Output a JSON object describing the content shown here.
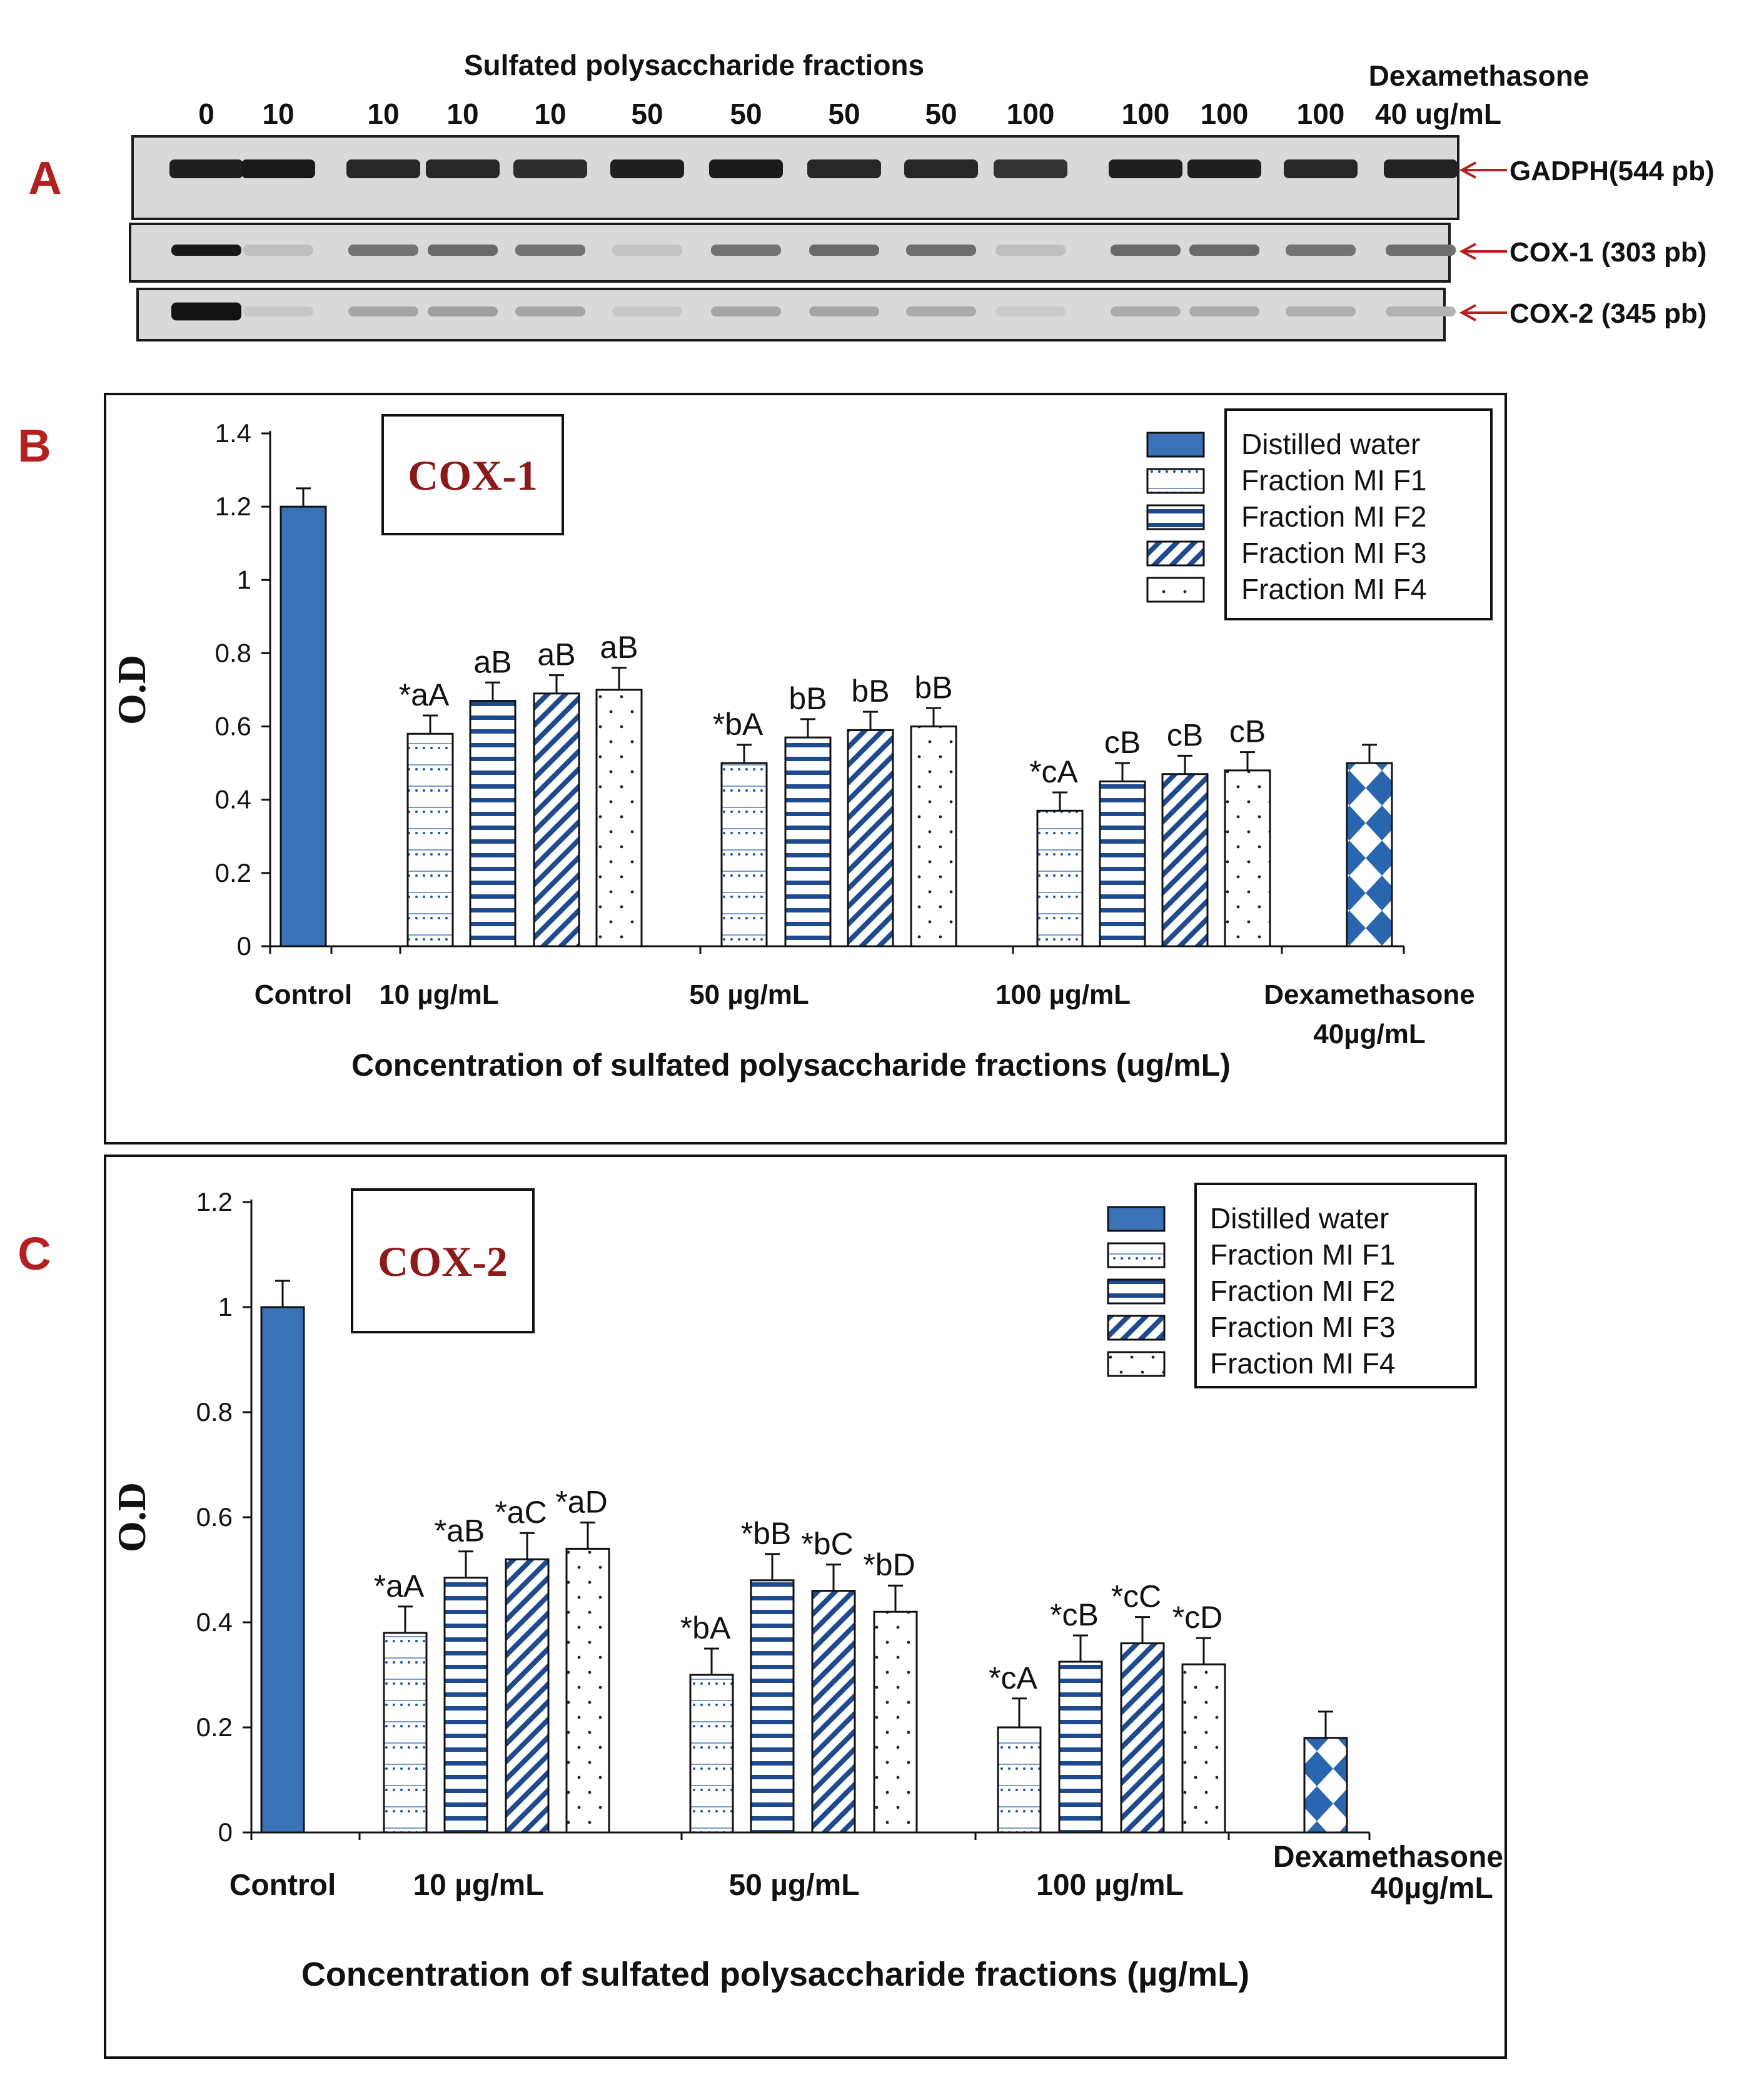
{
  "panel_labels": {
    "a": "A",
    "b": "B",
    "c": "C"
  },
  "gel": {
    "header": "Sulfated polysaccharide fractions",
    "dex_header": "Dexamethasone",
    "lanes": [
      "0",
      "10",
      "10",
      "10",
      "10",
      "50",
      "50",
      "50",
      "50",
      "100",
      "100",
      "100",
      "100",
      "40 ug/mL"
    ],
    "rows": [
      {
        "label": "GADPH(544 pb)",
        "intensities": [
          0.92,
          0.95,
          0.88,
          0.88,
          0.85,
          0.92,
          0.95,
          0.88,
          0.88,
          0.82,
          0.92,
          0.92,
          0.88,
          0.9
        ]
      },
      {
        "label": "COX-1 (303 pb)",
        "intensities": [
          0.95,
          0.12,
          0.5,
          0.55,
          0.5,
          0.1,
          0.5,
          0.55,
          0.52,
          0.12,
          0.55,
          0.55,
          0.5,
          0.52
        ]
      },
      {
        "label": "COX-2 (345 pb)",
        "intensities": [
          0.98,
          0.08,
          0.25,
          0.28,
          0.25,
          0.08,
          0.25,
          0.25,
          0.22,
          0.06,
          0.22,
          0.22,
          0.2,
          0.18
        ]
      }
    ]
  },
  "legend": [
    "Distilled water",
    "Fraction MI F1",
    "Fraction MI F2",
    "Fraction MI F3",
    "Fraction MI F4"
  ],
  "colors": {
    "control": "#3a72b8",
    "stroke": "#111111",
    "title": "#8b1a1a",
    "arrow": "#b32020",
    "pattern_blue": "#2a5aa0",
    "dex": "#2a66b0"
  },
  "chart_data": [
    {
      "type": "bar",
      "title": "COX-1",
      "ylabel": "O.D",
      "xlabel": "Concentration of sulfated polysaccharide fractions (ug/mL)",
      "ylim": [
        0,
        1.4
      ],
      "yticks": [
        "0",
        "0.2",
        "0.4",
        "0.6",
        "0.8",
        "1",
        "1.2",
        "1.4"
      ],
      "group_labels": [
        "Control",
        "10  µg/mL",
        "50 µg/mL",
        "100 µg/mL",
        "Dexamethasone",
        "40µg/mL"
      ],
      "bars": [
        {
          "group": "Control",
          "series": "Distilled water",
          "value": 1.2,
          "error": 0.05,
          "label": ""
        },
        {
          "group": "10",
          "series": "Fraction MI F1",
          "value": 0.58,
          "error": 0.05,
          "label": "*aA"
        },
        {
          "group": "10",
          "series": "Fraction MI F2",
          "value": 0.67,
          "error": 0.05,
          "label": "aB"
        },
        {
          "group": "10",
          "series": "Fraction MI F3",
          "value": 0.69,
          "error": 0.05,
          "label": "aB"
        },
        {
          "group": "10",
          "series": "Fraction MI F4",
          "value": 0.7,
          "error": 0.06,
          "label": "aB"
        },
        {
          "group": "50",
          "series": "Fraction MI F1",
          "value": 0.5,
          "error": 0.05,
          "label": "*bA"
        },
        {
          "group": "50",
          "series": "Fraction MI F2",
          "value": 0.57,
          "error": 0.05,
          "label": "bB"
        },
        {
          "group": "50",
          "series": "Fraction MI F3",
          "value": 0.59,
          "error": 0.05,
          "label": "bB"
        },
        {
          "group": "50",
          "series": "Fraction MI F4",
          "value": 0.6,
          "error": 0.05,
          "label": "bB"
        },
        {
          "group": "100",
          "series": "Fraction MI F1",
          "value": 0.37,
          "error": 0.05,
          "label": "*cA"
        },
        {
          "group": "100",
          "series": "Fraction MI F2",
          "value": 0.45,
          "error": 0.05,
          "label": "cB"
        },
        {
          "group": "100",
          "series": "Fraction MI F3",
          "value": 0.47,
          "error": 0.05,
          "label": "cB"
        },
        {
          "group": "100",
          "series": "Fraction MI F4",
          "value": 0.48,
          "error": 0.05,
          "label": "cB"
        },
        {
          "group": "Dexamethasone",
          "series": "Dexamethasone",
          "value": 0.5,
          "error": 0.05,
          "label": ""
        }
      ]
    },
    {
      "type": "bar",
      "title": "COX-2",
      "ylabel": "O.D",
      "xlabel": "Concentration of sulfated polysaccharide fractions (µg/mL)",
      "ylim": [
        0,
        1.2
      ],
      "yticks": [
        "0",
        "0.2",
        "0.4",
        "0.6",
        "0.8",
        "1",
        "1.2"
      ],
      "group_labels": [
        "Control",
        "10  µg/mL",
        "50 µg/mL",
        "100 µg/mL",
        "Dexamethasone",
        "40µg/mL"
      ],
      "bars": [
        {
          "group": "Control",
          "series": "Distilled water",
          "value": 1.0,
          "error": 0.05,
          "label": ""
        },
        {
          "group": "10",
          "series": "Fraction MI F1",
          "value": 0.38,
          "error": 0.05,
          "label": "*aA"
        },
        {
          "group": "10",
          "series": "Fraction MI F2",
          "value": 0.485,
          "error": 0.05,
          "label": "*aB"
        },
        {
          "group": "10",
          "series": "Fraction MI F3",
          "value": 0.52,
          "error": 0.05,
          "label": "*aC"
        },
        {
          "group": "10",
          "series": "Fraction MI F4",
          "value": 0.54,
          "error": 0.05,
          "label": "*aD"
        },
        {
          "group": "50",
          "series": "Fraction MI F1",
          "value": 0.3,
          "error": 0.05,
          "label": "*bA"
        },
        {
          "group": "50",
          "series": "Fraction MI F2",
          "value": 0.48,
          "error": 0.05,
          "label": "*bB"
        },
        {
          "group": "50",
          "series": "Fraction MI F3",
          "value": 0.46,
          "error": 0.05,
          "label": "*bC"
        },
        {
          "group": "50",
          "series": "Fraction MI F4",
          "value": 0.42,
          "error": 0.05,
          "label": "*bD"
        },
        {
          "group": "100",
          "series": "Fraction MI F1",
          "value": 0.2,
          "error": 0.055,
          "label": "*cA"
        },
        {
          "group": "100",
          "series": "Fraction MI F2",
          "value": 0.325,
          "error": 0.05,
          "label": "*cB"
        },
        {
          "group": "100",
          "series": "Fraction MI F3",
          "value": 0.36,
          "error": 0.05,
          "label": "*cC"
        },
        {
          "group": "100",
          "series": "Fraction MI F4",
          "value": 0.32,
          "error": 0.05,
          "label": "*cD"
        },
        {
          "group": "Dexamethasone",
          "series": "Dexamethasone",
          "value": 0.18,
          "error": 0.05,
          "label": ""
        }
      ]
    }
  ]
}
